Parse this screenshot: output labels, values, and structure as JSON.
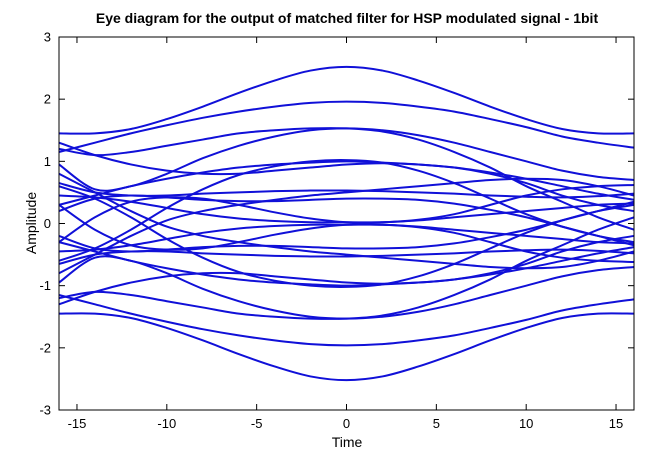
{
  "chart_data": {
    "type": "line",
    "title": "Eye diagram for the output of matched filter for HSP modulated signal - 1bit",
    "xlabel": "Time",
    "ylabel": "Amplitude",
    "xlim": [
      -16,
      16
    ],
    "ylim": [
      -3,
      3
    ],
    "xticks": [
      -15,
      -10,
      -5,
      0,
      5,
      10,
      15
    ],
    "xtick_labels": [
      "-15",
      "-10",
      "-5",
      "0",
      "5",
      "10",
      "15"
    ],
    "yticks": [
      -3,
      -2,
      -1,
      0,
      1,
      2,
      3
    ],
    "ytick_labels": [
      "-3",
      "-2",
      "-1",
      "0",
      "1",
      "2",
      "3"
    ],
    "grid": false,
    "line_color": "#1010d8",
    "x": [
      -16,
      -14,
      -12,
      -10,
      -8,
      -6,
      -4,
      -2,
      0,
      2,
      4,
      6,
      8,
      10,
      12,
      14,
      16
    ],
    "series": [
      {
        "values": [
          1.45,
          1.45,
          1.52,
          1.68,
          1.88,
          2.1,
          2.3,
          2.46,
          2.52,
          2.46,
          2.3,
          2.1,
          1.88,
          1.68,
          1.52,
          1.45,
          1.45
        ]
      },
      {
        "values": [
          -1.45,
          -1.45,
          -1.52,
          -1.68,
          -1.88,
          -2.1,
          -2.3,
          -2.46,
          -2.52,
          -2.46,
          -2.3,
          -2.1,
          -1.88,
          -1.68,
          -1.52,
          -1.45,
          -1.45
        ]
      },
      {
        "values": [
          1.15,
          1.3,
          1.45,
          1.58,
          1.7,
          1.8,
          1.88,
          1.94,
          1.96,
          1.94,
          1.88,
          1.8,
          1.68,
          1.55,
          1.4,
          1.3,
          1.22
        ]
      },
      {
        "values": [
          -1.15,
          -1.3,
          -1.45,
          -1.58,
          -1.7,
          -1.8,
          -1.88,
          -1.94,
          -1.96,
          -1.94,
          -1.88,
          -1.8,
          -1.68,
          -1.55,
          -1.4,
          -1.3,
          -1.22
        ]
      },
      {
        "values": [
          0.95,
          0.55,
          0.6,
          0.8,
          1.05,
          1.25,
          1.4,
          1.5,
          1.53,
          1.5,
          1.42,
          1.3,
          1.15,
          1.0,
          0.85,
          0.75,
          0.7
        ]
      },
      {
        "values": [
          -0.95,
          -0.55,
          -0.6,
          -0.8,
          -1.05,
          -1.25,
          -1.4,
          -1.5,
          -1.53,
          -1.5,
          -1.42,
          -1.3,
          -1.15,
          -1.0,
          -0.85,
          -0.75,
          -0.7
        ]
      },
      {
        "values": [
          1.2,
          1.1,
          1.15,
          1.25,
          1.35,
          1.45,
          1.5,
          1.53,
          1.53,
          1.48,
          1.35,
          1.15,
          0.9,
          0.6,
          0.35,
          0.1,
          -0.1
        ]
      },
      {
        "values": [
          -1.2,
          -1.1,
          -1.15,
          -1.25,
          -1.35,
          -1.45,
          -1.5,
          -1.53,
          -1.53,
          -1.48,
          -1.35,
          -1.15,
          -0.9,
          -0.6,
          -0.35,
          -0.1,
          0.1
        ]
      },
      {
        "values": [
          0.3,
          0.45,
          0.6,
          0.72,
          0.82,
          0.9,
          0.95,
          0.98,
          1.0,
          0.98,
          0.95,
          0.9,
          0.82,
          0.72,
          0.6,
          0.48,
          0.38
        ]
      },
      {
        "values": [
          -0.3,
          -0.45,
          -0.6,
          -0.72,
          -0.82,
          -0.9,
          -0.95,
          -0.98,
          -1.0,
          -0.98,
          -0.95,
          -0.9,
          -0.82,
          -0.72,
          -0.6,
          -0.48,
          -0.38
        ]
      },
      {
        "values": [
          -0.6,
          -0.4,
          -0.1,
          0.25,
          0.55,
          0.78,
          0.92,
          1.0,
          1.02,
          0.98,
          0.85,
          0.65,
          0.4,
          0.15,
          -0.05,
          -0.2,
          -0.3
        ]
      },
      {
        "values": [
          0.6,
          0.4,
          0.1,
          -0.25,
          -0.55,
          -0.78,
          -0.92,
          -1.0,
          -1.02,
          -0.98,
          -0.85,
          -0.65,
          -0.4,
          -0.15,
          0.05,
          0.2,
          0.3
        ]
      },
      {
        "values": [
          0.65,
          0.5,
          0.45,
          0.45,
          0.48,
          0.5,
          0.52,
          0.53,
          0.53,
          0.52,
          0.5,
          0.48,
          0.45,
          0.43,
          0.42,
          0.44,
          0.48
        ]
      },
      {
        "values": [
          -0.65,
          -0.5,
          -0.45,
          -0.45,
          -0.48,
          -0.5,
          -0.52,
          -0.53,
          -0.53,
          -0.52,
          -0.5,
          -0.48,
          -0.45,
          -0.43,
          -0.42,
          -0.44,
          -0.48
        ]
      },
      {
        "values": [
          0.2,
          0.4,
          0.45,
          0.42,
          0.38,
          0.36,
          0.36,
          0.38,
          0.4,
          0.4,
          0.38,
          0.32,
          0.22,
          0.1,
          -0.05,
          -0.2,
          -0.35
        ]
      },
      {
        "values": [
          -0.2,
          -0.4,
          -0.45,
          -0.42,
          -0.38,
          -0.36,
          -0.36,
          -0.38,
          -0.4,
          -0.4,
          -0.38,
          -0.32,
          -0.22,
          -0.1,
          0.05,
          0.2,
          0.35
        ]
      },
      {
        "values": [
          -0.3,
          0.1,
          0.35,
          0.42,
          0.4,
          0.3,
          0.18,
          0.08,
          0.02,
          0.02,
          0.05,
          0.1,
          0.15,
          0.2,
          0.25,
          0.3,
          0.32
        ]
      },
      {
        "values": [
          0.3,
          -0.1,
          -0.35,
          -0.42,
          -0.4,
          -0.3,
          -0.18,
          -0.08,
          -0.02,
          -0.02,
          -0.05,
          -0.1,
          -0.15,
          -0.2,
          -0.25,
          -0.3,
          -0.32
        ]
      },
      {
        "values": [
          0.45,
          0.42,
          0.35,
          0.25,
          0.15,
          0.08,
          0.04,
          0.02,
          0.02,
          0.02,
          0.06,
          0.15,
          0.3,
          0.45,
          0.55,
          0.6,
          0.62
        ]
      },
      {
        "values": [
          -0.45,
          -0.42,
          -0.35,
          -0.25,
          -0.15,
          -0.08,
          -0.04,
          -0.02,
          -0.02,
          -0.02,
          -0.06,
          -0.15,
          -0.3,
          -0.45,
          -0.55,
          -0.6,
          -0.62
        ]
      },
      {
        "values": [
          -0.8,
          -0.5,
          -0.2,
          0.05,
          0.2,
          0.3,
          0.38,
          0.45,
          0.5,
          0.55,
          0.6,
          0.65,
          0.7,
          0.72,
          0.7,
          0.6,
          0.45
        ]
      },
      {
        "values": [
          0.8,
          0.5,
          0.2,
          -0.05,
          -0.2,
          -0.3,
          -0.38,
          -0.45,
          -0.5,
          -0.55,
          -0.6,
          -0.65,
          -0.7,
          -0.72,
          -0.7,
          -0.6,
          -0.45
        ]
      },
      {
        "values": [
          -1.3,
          -1.1,
          -0.95,
          -0.85,
          -0.8,
          -0.8,
          -0.85,
          -0.9,
          -0.95,
          -0.97,
          -0.95,
          -0.9,
          -0.8,
          -0.65,
          -0.45,
          -0.3,
          -0.2
        ]
      },
      {
        "values": [
          1.3,
          1.1,
          0.95,
          0.85,
          0.8,
          0.8,
          0.85,
          0.9,
          0.95,
          0.97,
          0.95,
          0.9,
          0.8,
          0.65,
          0.45,
          0.3,
          0.2
        ]
      }
    ]
  }
}
